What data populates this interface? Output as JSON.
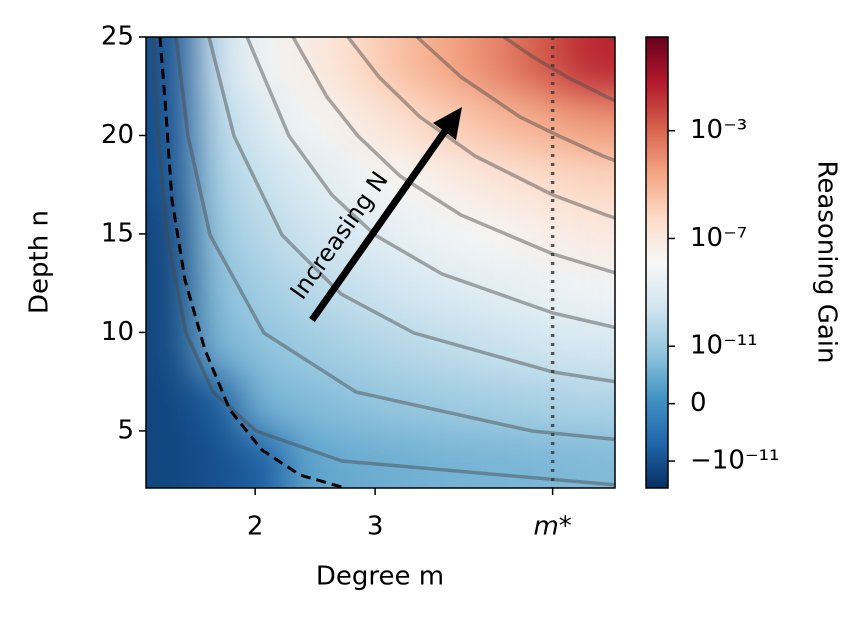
{
  "chart_data": {
    "type": "heatmap",
    "x_label": "Degree m",
    "y_label": "Depth n",
    "annotation": "Increasing N",
    "xlim": [
      1.09,
      5
    ],
    "ylim": [
      2.1,
      25
    ],
    "xticks": [
      2,
      3,
      {
        "value": 4.48,
        "label": "m*",
        "line": "dotted"
      }
    ],
    "yticks": [
      5,
      10,
      15,
      20,
      25
    ],
    "x": [
      1.29,
      1.68,
      2.07,
      2.46,
      2.85,
      3.25,
      3.64,
      4.03,
      4.42,
      4.8
    ],
    "y": [
      3.53,
      6.39,
      9.26,
      12.12,
      14.98,
      17.84,
      20.7,
      23.57
    ],
    "z": [
      [
        -2e-11,
        -1e-11,
        -3e-12,
        6e-13,
        8e-13,
        1.1e-12,
        1.4e-12,
        1.7e-12,
        2e-12,
        2.5e-12
      ],
      [
        -2e-11,
        -5e-12,
        1.5e-12,
        2.7e-12,
        4.7e-12,
        7.6e-12,
        1.2e-11,
        1.7e-11,
        2.4e-11,
        3.2e-11
      ],
      [
        -2e-11,
        1.6e-12,
        4.8e-12,
        1.2e-11,
        2.7e-11,
        5.4e-11,
        9.8e-11,
        1.7e-10,
        2.8e-10,
        4.3e-10
      ],
      [
        -2e-11,
        3.7e-12,
        1.6e-11,
        5.4e-11,
        1.5e-10,
        3.7e-10,
        8.2e-10,
        1.7e-09,
        3.2e-09,
        5.7e-09
      ],
      [
        -2e-11,
        8.7e-12,
        5.4e-11,
        2.3e-10,
        8.3e-10,
        2.6e-09,
        6.9e-09,
        1.7e-08,
        3.7e-08,
        7.5e-08
      ],
      [
        -1e-11,
        2.1e-11,
        1.8e-10,
        1e-09,
        4.7e-09,
        1.8e-08,
        5.8e-08,
        1.7e-07,
        4.3e-07,
        1e-06
      ],
      [
        -1e-11,
        6e-11,
        9e-10,
        8e-09,
        6e-08,
        3.5e-07,
        1.6e-06,
        6e-06,
        2e-05,
        6e-05
      ],
      [
        -1e-11,
        2e-10,
        5e-09,
        6e-08,
        6e-07,
        5e-06,
        3e-05,
        0.0002,
        0.002,
        0.03
      ]
    ],
    "colormap": "RdBu_r",
    "colorbar": {
      "label": "Reasoning Gain",
      "scale": "symlog",
      "linthresh": 7.4e-13,
      "lim": [
        -1e-10,
        3
      ],
      "ticks": [
        {
          "value": 0.001,
          "label": "10⁻³"
        },
        {
          "value": 1e-07,
          "label": "10⁻⁷"
        },
        {
          "value": 1e-11,
          "label": "10⁻¹¹"
        },
        0,
        {
          "value": -1e-11,
          "label": "−10⁻¹¹"
        }
      ]
    }
  }
}
